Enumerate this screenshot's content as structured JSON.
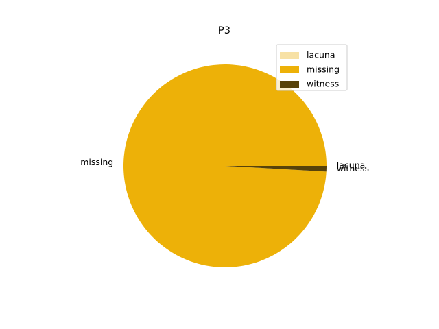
{
  "chart_data": {
    "type": "pie",
    "title": "P3",
    "slices": [
      {
        "label": "lacuna",
        "value": 0.0,
        "color": "#f7e1a5"
      },
      {
        "label": "missing",
        "value": 99.1,
        "color": "#edb108"
      },
      {
        "label": "witness",
        "value": 0.9,
        "color": "#57420a"
      }
    ],
    "legend": {
      "location": "top-right",
      "entries": [
        "lacuna",
        "missing",
        "witness"
      ]
    }
  }
}
